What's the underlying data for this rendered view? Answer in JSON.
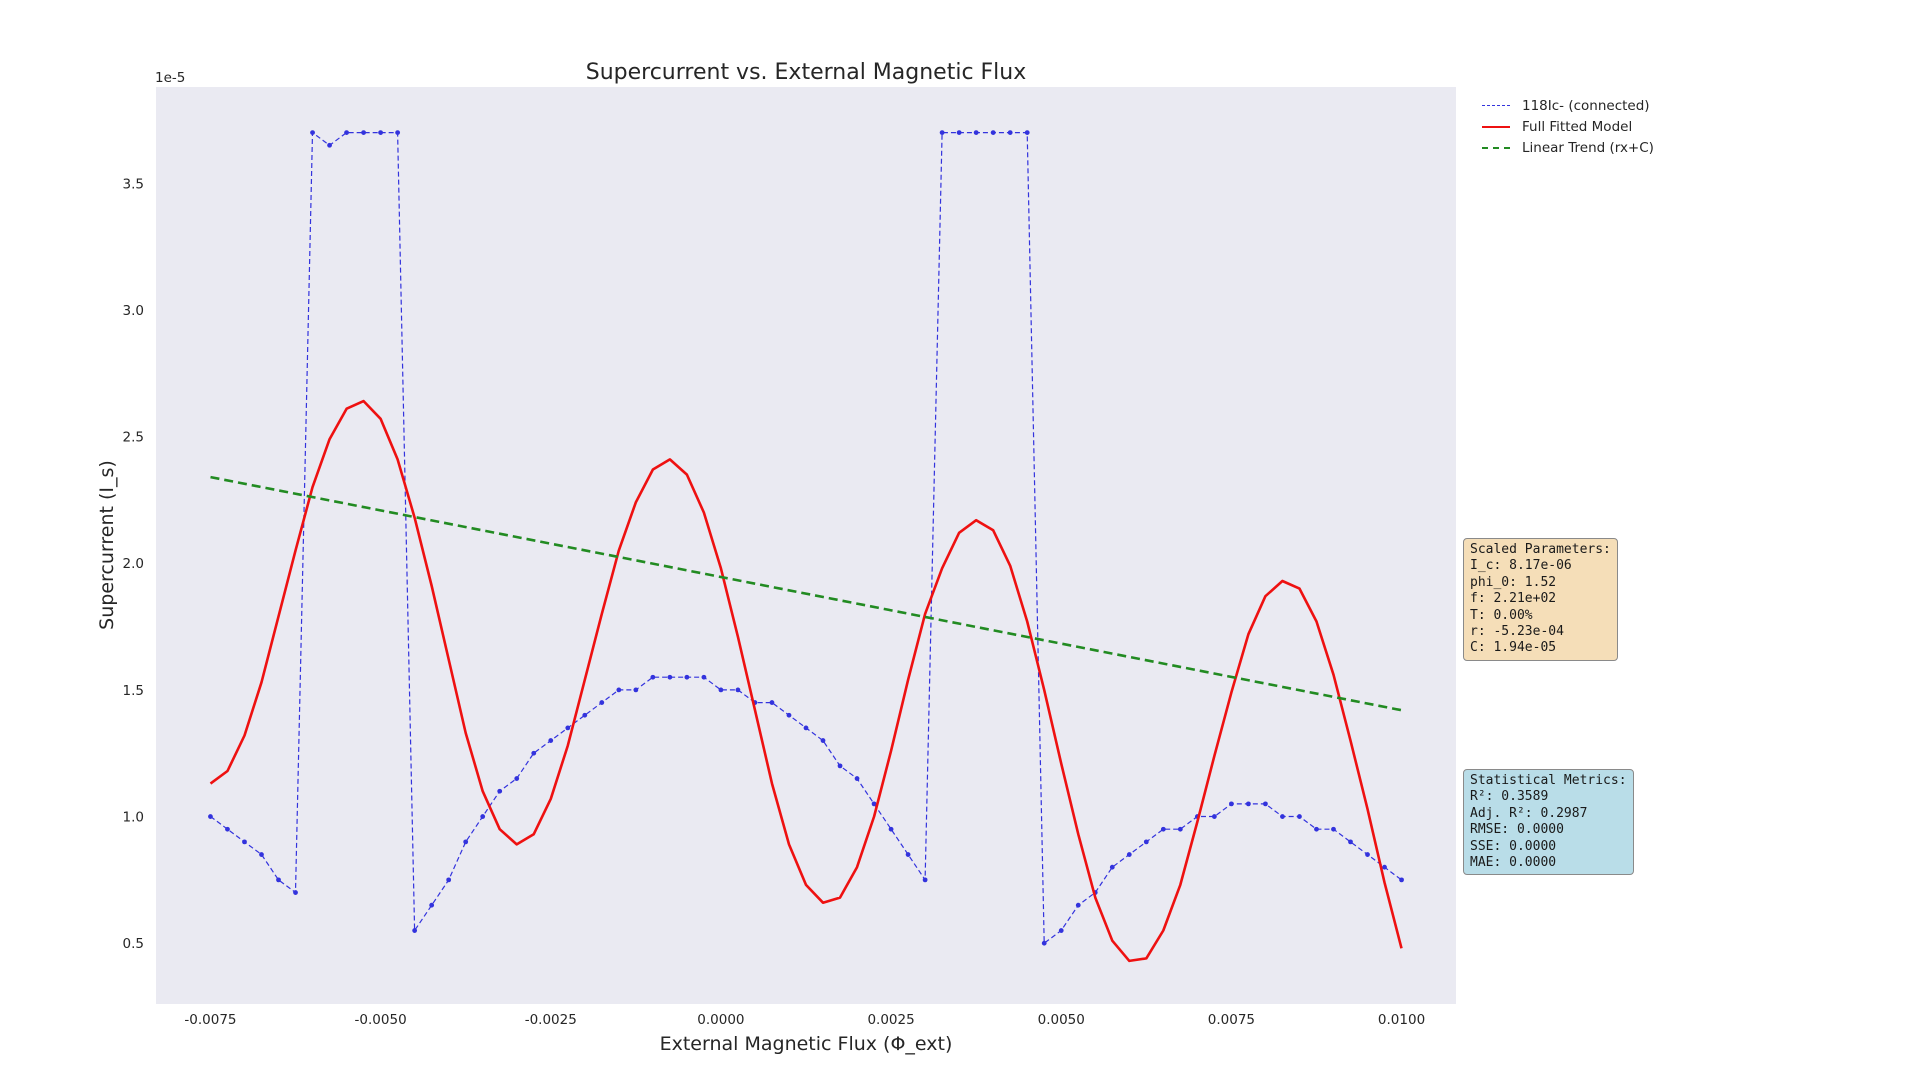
{
  "chart_data": {
    "type": "line",
    "title": "Supercurrent vs. External Magnetic Flux",
    "xlabel": "External Magnetic Flux (Φ_ext)",
    "ylabel": "Supercurrent (I_s)",
    "y_offset_label": "1e-5",
    "xlim": [
      -0.0083,
      0.0108
    ],
    "ylim": [
      0.26,
      3.88
    ],
    "grid": false,
    "legend_position": "outside-top-right",
    "x_ticks": [
      -0.0075,
      -0.005,
      -0.0025,
      0,
      0.0025,
      0.005,
      0.0075,
      0.01
    ],
    "x_tick_labels": [
      "-0.0075",
      "-0.0050",
      "-0.0025",
      "0.0000",
      "0.0025",
      "0.0050",
      "0.0075",
      "0.0100"
    ],
    "y_ticks": [
      0.5,
      1.0,
      1.5,
      2.0,
      2.5,
      3.0,
      3.5
    ],
    "y_tick_labels": [
      "0.5",
      "1.0",
      "1.5",
      "2.0",
      "2.5",
      "3.0",
      "3.5"
    ],
    "series": [
      {
        "name": "118Ic- (connected)",
        "color": "#3333dd",
        "style": "dashed-markers",
        "x": [
          -0.0075,
          -0.00725,
          -0.007,
          -0.00675,
          -0.0065,
          -0.00625,
          -0.006,
          -0.00575,
          -0.0055,
          -0.00525,
          -0.005,
          -0.00475,
          -0.0045,
          -0.00425,
          -0.004,
          -0.00375,
          -0.0035,
          -0.00325,
          -0.003,
          -0.00275,
          -0.0025,
          -0.00225,
          -0.002,
          -0.00175,
          -0.0015,
          -0.00125,
          -0.001,
          -0.00075,
          -0.0005,
          -0.00025,
          0,
          0.00025,
          0.0005,
          0.00075,
          0.001,
          0.00125,
          0.0015,
          0.00175,
          0.002,
          0.00225,
          0.0025,
          0.00275,
          0.003,
          0.00325,
          0.0035,
          0.00375,
          0.004,
          0.00425,
          0.0045,
          0.00475,
          0.005,
          0.00525,
          0.0055,
          0.00575,
          0.006,
          0.00625,
          0.0065,
          0.00675,
          0.007,
          0.00725,
          0.0075,
          0.00775,
          0.008,
          0.00825,
          0.0085,
          0.00875,
          0.009,
          0.00925,
          0.0095,
          0.00975,
          0.01
        ],
        "values": [
          1.0,
          0.95,
          0.9,
          0.85,
          0.75,
          0.7,
          3.7,
          3.65,
          3.7,
          3.7,
          3.7,
          3.7,
          0.55,
          0.65,
          0.75,
          0.9,
          1.0,
          1.1,
          1.15,
          1.25,
          1.3,
          1.35,
          1.4,
          1.45,
          1.5,
          1.5,
          1.55,
          1.55,
          1.55,
          1.55,
          1.5,
          1.5,
          1.45,
          1.45,
          1.4,
          1.35,
          1.3,
          1.2,
          1.15,
          1.05,
          0.95,
          0.85,
          0.75,
          3.7,
          3.7,
          3.7,
          3.7,
          3.7,
          3.7,
          0.5,
          0.55,
          0.65,
          0.7,
          0.8,
          0.85,
          0.9,
          0.95,
          0.95,
          1.0,
          1.0,
          1.05,
          1.05,
          1.05,
          1.0,
          1.0,
          0.95,
          0.95,
          0.9,
          0.85,
          0.8,
          0.75
        ]
      },
      {
        "name": "Full Fitted Model",
        "color": "#ee1111",
        "style": "solid",
        "x": [
          -0.0075,
          -0.00725,
          -0.007,
          -0.00675,
          -0.0065,
          -0.00625,
          -0.006,
          -0.00575,
          -0.0055,
          -0.00525,
          -0.005,
          -0.00475,
          -0.0045,
          -0.00425,
          -0.004,
          -0.00375,
          -0.0035,
          -0.00325,
          -0.003,
          -0.00275,
          -0.0025,
          -0.00225,
          -0.002,
          -0.00175,
          -0.0015,
          -0.00125,
          -0.001,
          -0.00075,
          -0.0005,
          -0.00025,
          0,
          0.00025,
          0.0005,
          0.00075,
          0.001,
          0.00125,
          0.0015,
          0.00175,
          0.002,
          0.00225,
          0.0025,
          0.00275,
          0.003,
          0.00325,
          0.0035,
          0.00375,
          0.004,
          0.00425,
          0.0045,
          0.00475,
          0.005,
          0.00525,
          0.0055,
          0.00575,
          0.006,
          0.00625,
          0.0065,
          0.00675,
          0.007,
          0.00725,
          0.0075,
          0.00775,
          0.008,
          0.00825,
          0.0085,
          0.00875,
          0.009,
          0.00925,
          0.0095,
          0.00975,
          0.01
        ],
        "values": [
          1.13,
          1.18,
          1.32,
          1.53,
          1.79,
          2.05,
          2.3,
          2.49,
          2.61,
          2.64,
          2.57,
          2.41,
          2.18,
          1.91,
          1.62,
          1.33,
          1.1,
          0.95,
          0.89,
          0.93,
          1.07,
          1.28,
          1.54,
          1.8,
          2.05,
          2.24,
          2.37,
          2.41,
          2.35,
          2.2,
          1.98,
          1.71,
          1.42,
          1.13,
          0.89,
          0.73,
          0.66,
          0.68,
          0.8,
          1.0,
          1.26,
          1.54,
          1.8,
          1.98,
          2.12,
          2.17,
          2.13,
          1.99,
          1.77,
          1.5,
          1.21,
          0.93,
          0.68,
          0.51,
          0.43,
          0.44,
          0.55,
          0.73,
          0.98,
          1.24,
          1.49,
          1.72,
          1.87,
          1.93,
          1.9,
          1.77,
          1.56,
          1.3,
          1.03,
          0.74,
          0.48
        ]
      },
      {
        "name": "Linear Trend (rx+C)",
        "color": "#228b22",
        "style": "long-dashed",
        "x": [
          -0.0075,
          0.01
        ],
        "values": [
          2.34,
          1.42
        ]
      }
    ]
  },
  "parameters_box": {
    "lines": [
      "Scaled Parameters:",
      "I_c: 8.17e-06",
      "phi_0: 1.52",
      "f: 2.21e+02",
      "T: 0.00%",
      "r: -5.23e-04",
      "C: 1.94e-05"
    ]
  },
  "metrics_box": {
    "lines": [
      "Statistical Metrics:",
      "R²: 0.3589",
      "Adj. R²: 0.2987",
      "RMSE: 0.0000",
      "SSE: 0.0000",
      "MAE: 0.0000"
    ]
  },
  "colors": {
    "plot_background": "#eaeaf2",
    "parameters_box_bg": "#f5deb8",
    "metrics_box_bg": "#b9dde8"
  }
}
